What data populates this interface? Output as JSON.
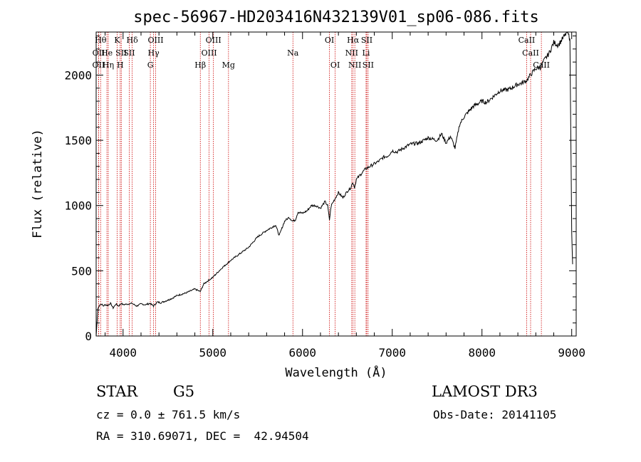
{
  "chart_data": {
    "type": "line",
    "title": "spec-56967-HD203416N432139V01_sp06-086.fits",
    "xlabel": "Wavelength (Å)",
    "ylabel": "Flux (relative)",
    "xlim": [
      3700,
      9050
    ],
    "ylim": [
      0,
      2330
    ],
    "xticks": [
      4000,
      5000,
      6000,
      7000,
      8000,
      9000
    ],
    "yticks": [
      0,
      500,
      1000,
      1500,
      2000
    ],
    "series": [
      {
        "name": "flux",
        "x": [
          3700,
          3720,
          3740,
          3760,
          3780,
          3800,
          3830,
          3860,
          3890,
          3920,
          3950,
          3980,
          4000,
          4050,
          4100,
          4150,
          4200,
          4250,
          4300,
          4340,
          4380,
          4420,
          4480,
          4550,
          4600,
          4700,
          4800,
          4860,
          4900,
          5000,
          5100,
          5200,
          5300,
          5400,
          5500,
          5600,
          5700,
          5740,
          5800,
          5850,
          5890,
          5920,
          5950,
          6000,
          6050,
          6100,
          6150,
          6200,
          6250,
          6280,
          6300,
          6320,
          6400,
          6450,
          6500,
          6540,
          6560,
          6580,
          6600,
          6650,
          6700,
          6750,
          6800,
          6850,
          6900,
          6950,
          7000,
          7050,
          7100,
          7150,
          7200,
          7300,
          7400,
          7500,
          7550,
          7600,
          7650,
          7700,
          7750,
          7800,
          7900,
          8000,
          8050,
          8100,
          8200,
          8300,
          8400,
          8450,
          8500,
          8550,
          8600,
          8650,
          8700,
          8750,
          8800,
          8850,
          8900,
          8950,
          8980,
          9000,
          9010
        ],
        "y": [
          0,
          210,
          240,
          245,
          230,
          240,
          235,
          250,
          215,
          245,
          230,
          250,
          240,
          245,
          250,
          230,
          245,
          240,
          250,
          230,
          260,
          255,
          270,
          290,
          310,
          330,
          360,
          340,
          400,
          450,
          520,
          580,
          630,
          680,
          760,
          810,
          850,
          770,
          880,
          910,
          880,
          890,
          950,
          940,
          960,
          1000,
          1000,
          980,
          1030,
          1000,
          890,
          1000,
          1100,
          1060,
          1110,
          1140,
          1180,
          1140,
          1200,
          1240,
          1280,
          1300,
          1320,
          1340,
          1370,
          1380,
          1420,
          1410,
          1430,
          1450,
          1470,
          1480,
          1520,
          1500,
          1550,
          1480,
          1530,
          1440,
          1620,
          1680,
          1760,
          1800,
          1790,
          1820,
          1880,
          1890,
          1930,
          1940,
          1960,
          2010,
          2050,
          2060,
          2120,
          2170,
          2250,
          2230,
          2280,
          2330,
          2280,
          800,
          550
        ]
      }
    ],
    "lines": [
      {
        "name": "Hθ",
        "x": 3750,
        "row": 0
      },
      {
        "name": "OII",
        "x": 3728,
        "row": 1
      },
      {
        "name": "OII",
        "x": 3727,
        "row": 2
      },
      {
        "name": "He",
        "x": 3820,
        "row": 1
      },
      {
        "name": "Hη",
        "x": 3835,
        "row": 2
      },
      {
        "name": "K",
        "x": 3934,
        "row": 0
      },
      {
        "name": "SII",
        "x": 3980,
        "row": 1
      },
      {
        "name": "H",
        "x": 3968,
        "row": 2
      },
      {
        "name": "Hδ",
        "x": 4102,
        "row": 0
      },
      {
        "name": "SII",
        "x": 4069,
        "row": 1
      },
      {
        "name": "OIII",
        "x": 4363,
        "row": 0
      },
      {
        "name": "Hγ",
        "x": 4340,
        "row": 1
      },
      {
        "name": "G",
        "x": 4304,
        "row": 2
      },
      {
        "name": "Hβ",
        "x": 4861,
        "row": 2
      },
      {
        "name": "OIII",
        "x": 5007,
        "row": 0
      },
      {
        "name": "OIII",
        "x": 4959,
        "row": 1
      },
      {
        "name": "Mg",
        "x": 5175,
        "row": 2
      },
      {
        "name": "Na",
        "x": 5893,
        "row": 1
      },
      {
        "name": "OI",
        "x": 6300,
        "row": 0
      },
      {
        "name": "OI",
        "x": 6364,
        "row": 2
      },
      {
        "name": "Hα",
        "x": 6563,
        "row": 0
      },
      {
        "name": "NII",
        "x": 6548,
        "row": 1
      },
      {
        "name": "NII",
        "x": 6583,
        "row": 2
      },
      {
        "name": "SII",
        "x": 6716,
        "row": 0
      },
      {
        "name": "Li",
        "x": 6708,
        "row": 1
      },
      {
        "name": "SII",
        "x": 6731,
        "row": 2
      },
      {
        "name": "CaII",
        "x": 8498,
        "row": 0
      },
      {
        "name": "CaII",
        "x": 8542,
        "row": 1
      },
      {
        "name": "CaII",
        "x": 8662,
        "row": 2
      }
    ]
  },
  "info": {
    "class_label": "STAR",
    "subclass": "G5",
    "survey": "LAMOST DR3",
    "redshift": "cz = 0.0 ± 761.5 km/s",
    "obs_date": "Obs-Date: 20141105",
    "coords": "RA = 310.69071, DEC =  42.94504"
  },
  "colors": {
    "line_marker": "#cc0000",
    "spectrum": "#000000"
  }
}
